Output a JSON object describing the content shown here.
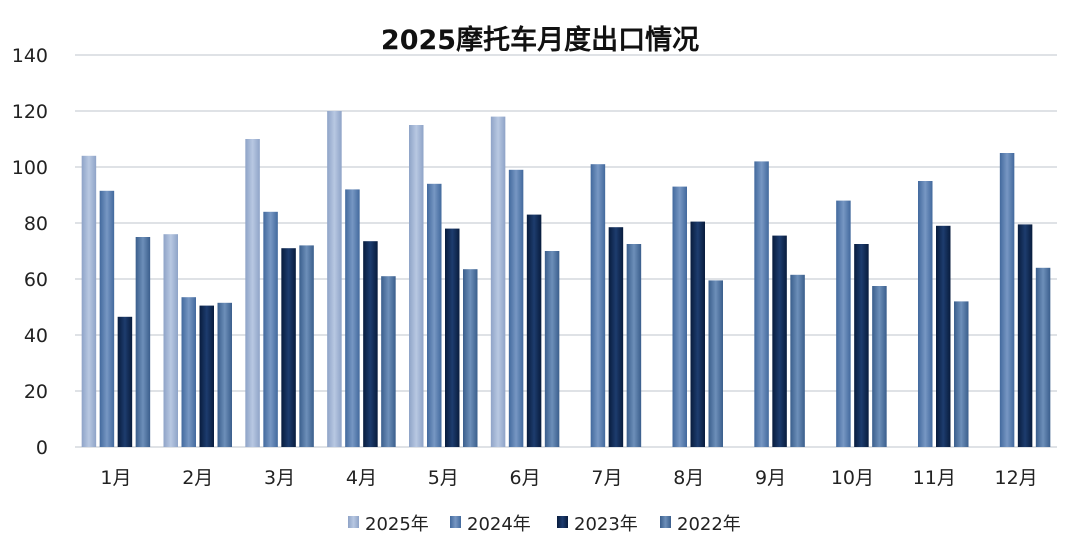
{
  "chart_data": {
    "type": "bar",
    "title": "2025摩托车月度出口情况",
    "xlabel": "",
    "ylabel": "",
    "ylim": [
      0,
      140
    ],
    "yticks": [
      0,
      20,
      40,
      60,
      80,
      100,
      120,
      140
    ],
    "grid": true,
    "legend_position": "bottom",
    "categories": [
      "1月",
      "2月",
      "3月",
      "4月",
      "5月",
      "6月",
      "7月",
      "8月",
      "9月",
      "10月",
      "11月",
      "12月"
    ],
    "series": [
      {
        "name": "2025年",
        "color": "#9fb3d3",
        "values": [
          104,
          76,
          110,
          120,
          115,
          118,
          null,
          null,
          null,
          null,
          null,
          null
        ]
      },
      {
        "name": "2024年",
        "color": "#5b80b2",
        "values": [
          91.5,
          53.5,
          84,
          92,
          94,
          99,
          101,
          93,
          102,
          88,
          95,
          105
        ]
      },
      {
        "name": "2023年",
        "color": "#0f2a55",
        "values": [
          46.5,
          50.5,
          71,
          73.5,
          78,
          83,
          78.5,
          80.5,
          75.5,
          72.5,
          79,
          79.5
        ]
      },
      {
        "name": "2022年",
        "color": "#4c709e",
        "values": [
          75,
          51.5,
          72,
          61,
          63.5,
          70,
          72.5,
          59.5,
          61.5,
          57.5,
          52,
          64
        ]
      }
    ]
  }
}
